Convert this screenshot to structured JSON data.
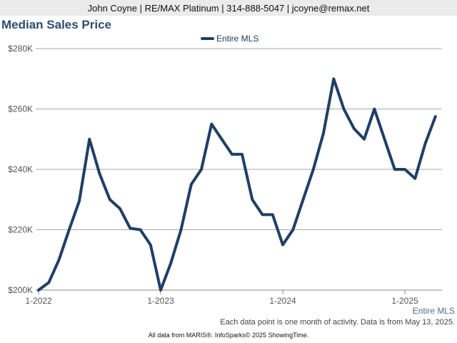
{
  "header": {
    "contact_line": "John Coyne | RE/MAX Platinum | 314-888-5047 | jcoyne@remax.net"
  },
  "chart_data": {
    "type": "line",
    "title": "Median Sales Price",
    "xlabel": "Entire MLS",
    "ylabel": "",
    "ylim": [
      200000,
      280000
    ],
    "y_ticks": [
      200000,
      220000,
      240000,
      260000,
      280000
    ],
    "y_tick_labels": [
      "$200K",
      "$220K",
      "$240K",
      "$260K",
      "$280K"
    ],
    "x_tick_labels": [
      {
        "label": "1-2022",
        "index": 0
      },
      {
        "label": "1-2023",
        "index": 12
      },
      {
        "label": "1-2024",
        "index": 24
      },
      {
        "label": "1-2025",
        "index": 36
      }
    ],
    "x": [
      "1-2022",
      "2-2022",
      "3-2022",
      "4-2022",
      "5-2022",
      "6-2022",
      "7-2022",
      "8-2022",
      "9-2022",
      "10-2022",
      "11-2022",
      "12-2022",
      "1-2023",
      "2-2023",
      "3-2023",
      "4-2023",
      "5-2023",
      "6-2023",
      "7-2023",
      "8-2023",
      "9-2023",
      "10-2023",
      "11-2023",
      "12-2023",
      "1-2024",
      "2-2024",
      "3-2024",
      "4-2024",
      "5-2024",
      "6-2024",
      "7-2024",
      "8-2024",
      "9-2024",
      "10-2024",
      "11-2024",
      "12-2024",
      "1-2025",
      "2-2025",
      "3-2025",
      "4-2025"
    ],
    "series": [
      {
        "name": "Entire MLS",
        "color": "#1f3f66",
        "values": [
          200000,
          202500,
          210000,
          220000,
          229500,
          250000,
          238500,
          230000,
          227000,
          220500,
          220000,
          215000,
          200000,
          209000,
          220000,
          235000,
          240000,
          255000,
          250000,
          245000,
          245000,
          230000,
          225000,
          225000,
          215000,
          220000,
          230000,
          240000,
          252000,
          270000,
          260000,
          253500,
          250000,
          260000,
          250000,
          240000,
          240000,
          237000,
          248500,
          257500
        ]
      }
    ],
    "grid": true,
    "legend_position": "top-center"
  },
  "footer": {
    "note": "Each data point is one month of activity. Data is from May 13, 2025.",
    "credit": "All data from MARIS®. InfoSparks© 2025 ShowingTime."
  }
}
